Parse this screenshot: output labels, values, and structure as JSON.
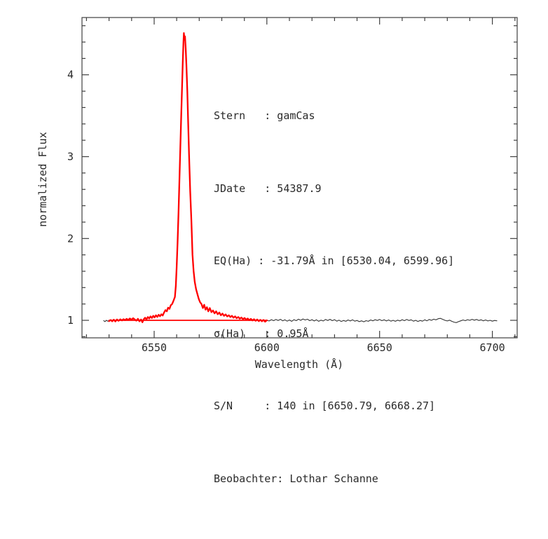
{
  "colors": {
    "background": "#ffffff",
    "frame": "#3f3f3f",
    "text": "#2a2a2a",
    "spectrum_red": "#ff0000",
    "spectrum_black": "#333333"
  },
  "annotation": {
    "lines": [
      "Stern   : gamCas",
      "JDate   : 54387.9",
      "EQ(Ha) : -31.79Å in [6530.04, 6599.96]",
      "σ(Ha)   : 0.95Å",
      "S/N     : 140 in [6650.79, 6668.27]",
      "Beobachter: Lothar Schanne"
    ],
    "star": "gamCas",
    "jdate": "54387.9",
    "eq_ha": "-31.79Å",
    "eq_range": "[6530.04, 6599.96]",
    "sigma_ha": "0.95Å",
    "sn": "140",
    "sn_range": "[6650.79, 6668.27]",
    "observer": "Lothar Schanne"
  },
  "chart_data": {
    "type": "line",
    "title": "",
    "xlabel": "Wavelength (Å)",
    "ylabel": "normalized Flux",
    "xlim": [
      6518,
      6711
    ],
    "ylim": [
      0.786,
      4.7
    ],
    "grid": false,
    "legend": "none",
    "x_major_ticks": [
      6550,
      6600,
      6650,
      6700
    ],
    "x_minor_ticks": [
      6520,
      6530,
      6540,
      6560,
      6570,
      6580,
      6590,
      6610,
      6620,
      6630,
      6640,
      6660,
      6670,
      6680,
      6690,
      6710
    ],
    "y_major_ticks": [
      1,
      2,
      3,
      4
    ],
    "y_minor_ticks": [
      0.8,
      1.2,
      1.4,
      1.6,
      1.8,
      2.2,
      2.4,
      2.6,
      2.8,
      3.2,
      3.4,
      3.6,
      3.8,
      4.2,
      4.4,
      4.6
    ],
    "series": [
      {
        "name": "continuum-fit-line",
        "color": "#ff0000",
        "width": 1.8,
        "points": [
          [
            6530.04,
            1.0
          ],
          [
            6599.96,
            1.0
          ]
        ]
      },
      {
        "name": "spectrum-left-black",
        "color": "#333333",
        "width": 1.1,
        "points": [
          [
            6527.6,
            0.997
          ],
          [
            6528.2,
            0.985
          ],
          [
            6528.8,
            1.0
          ],
          [
            6529.4,
            0.99
          ],
          [
            6530.1,
            0.998
          ]
        ]
      },
      {
        "name": "spectrum-right-black",
        "color": "#333333",
        "width": 1.1,
        "points": [
          [
            6600,
            1.0
          ],
          [
            6601,
            0.992
          ],
          [
            6602,
            1.008
          ],
          [
            6603,
            0.996
          ],
          [
            6604,
            1.01
          ],
          [
            6605,
            0.998
          ],
          [
            6606,
            1.012
          ],
          [
            6607,
            0.994
          ],
          [
            6608,
            1.006
          ],
          [
            6609,
            0.99
          ],
          [
            6610,
            1.004
          ],
          [
            6611,
            0.988
          ],
          [
            6612,
            1.008
          ],
          [
            6613,
            0.996
          ],
          [
            6614,
            1.014
          ],
          [
            6615,
            1.0
          ],
          [
            6616,
            1.016
          ],
          [
            6617,
            1.004
          ],
          [
            6618,
            1.014
          ],
          [
            6619,
            0.996
          ],
          [
            6620,
            1.008
          ],
          [
            6621,
            0.992
          ],
          [
            6622,
            1.006
          ],
          [
            6623,
            0.988
          ],
          [
            6624,
            1.002
          ],
          [
            6625,
            0.992
          ],
          [
            6626,
            1.01
          ],
          [
            6627,
            0.998
          ],
          [
            6628,
            1.012
          ],
          [
            6629,
            0.996
          ],
          [
            6630,
            1.008
          ],
          [
            6631,
            0.99
          ],
          [
            6632,
            1.002
          ],
          [
            6633,
            0.986
          ],
          [
            6634,
            0.998
          ],
          [
            6635,
            0.988
          ],
          [
            6636,
            1.004
          ],
          [
            6637,
            0.992
          ],
          [
            6638,
            1.006
          ],
          [
            6639,
            0.99
          ],
          [
            6640,
            0.998
          ],
          [
            6641,
            0.984
          ],
          [
            6642,
            0.994
          ],
          [
            6643,
            0.982
          ],
          [
            6644,
            0.996
          ],
          [
            6645,
            0.988
          ],
          [
            6646,
            1.004
          ],
          [
            6647,
            0.994
          ],
          [
            6648,
            1.008
          ],
          [
            6649,
            0.998
          ],
          [
            6650,
            1.01
          ],
          [
            6651,
            0.996
          ],
          [
            6652,
            1.006
          ],
          [
            6653,
            0.992
          ],
          [
            6654,
            1.004
          ],
          [
            6655,
            0.99
          ],
          [
            6656,
            1.0
          ],
          [
            6657,
            0.988
          ],
          [
            6658,
            1.002
          ],
          [
            6659,
            0.992
          ],
          [
            6660,
            1.008
          ],
          [
            6661,
            0.996
          ],
          [
            6662,
            1.01
          ],
          [
            6663,
            0.998
          ],
          [
            6664,
            1.006
          ],
          [
            6665,
            0.99
          ],
          [
            6666,
            1.0
          ],
          [
            6667,
            0.986
          ],
          [
            6668,
            0.998
          ],
          [
            6669,
            0.99
          ],
          [
            6670,
            1.006
          ],
          [
            6671,
            0.994
          ],
          [
            6672,
            1.01
          ],
          [
            6673,
            1.0
          ],
          [
            6674,
            1.014
          ],
          [
            6675,
            1.006
          ],
          [
            6676,
            1.02
          ],
          [
            6677,
            1.024
          ],
          [
            6678,
            1.012
          ],
          [
            6679,
            1.0
          ],
          [
            6680,
            0.992
          ],
          [
            6681,
            1.002
          ],
          [
            6682,
            0.988
          ],
          [
            6683,
            0.978
          ],
          [
            6684,
            0.972
          ],
          [
            6685,
            0.984
          ],
          [
            6686,
            0.994
          ],
          [
            6687,
            1.004
          ],
          [
            6688,
            0.996
          ],
          [
            6689,
            1.008
          ],
          [
            6690,
            1.0
          ],
          [
            6691,
            1.012
          ],
          [
            6692,
            1.002
          ],
          [
            6693,
            1.01
          ],
          [
            6694,
            0.998
          ],
          [
            6695,
            1.006
          ],
          [
            6696,
            0.994
          ],
          [
            6697,
            1.004
          ],
          [
            6698,
            0.992
          ],
          [
            6699,
            1.0
          ],
          [
            6700,
            0.99
          ],
          [
            6701,
            0.998
          ],
          [
            6702,
            0.994
          ]
        ]
      },
      {
        "name": "spectrum-halpha-eq-region-red",
        "color": "#ff0000",
        "width": 2.3,
        "points": [
          [
            6530.0,
            0.99
          ],
          [
            6530.7,
            1.004
          ],
          [
            6531.4,
            0.988
          ],
          [
            6532.1,
            1.008
          ],
          [
            6532.8,
            0.986
          ],
          [
            6533.5,
            1.01
          ],
          [
            6534.2,
            0.994
          ],
          [
            6535.0,
            1.012
          ],
          [
            6535.7,
            0.998
          ],
          [
            6536.4,
            1.014
          ],
          [
            6537.1,
            1.002
          ],
          [
            6537.8,
            1.018
          ],
          [
            6538.5,
            1.004
          ],
          [
            6539.2,
            1.022
          ],
          [
            6540.0,
            1.008
          ],
          [
            6540.7,
            1.026
          ],
          [
            6541.4,
            1.01
          ],
          [
            6542.1,
            0.996
          ],
          [
            6542.8,
            1.018
          ],
          [
            6543.5,
            0.988
          ],
          [
            6544.2,
            1.01
          ],
          [
            6544.8,
            0.976
          ],
          [
            6545.4,
            1.014
          ],
          [
            6546.0,
            1.032
          ],
          [
            6546.6,
            1.012
          ],
          [
            6547.2,
            1.04
          ],
          [
            6547.8,
            1.022
          ],
          [
            6548.4,
            1.048
          ],
          [
            6549.0,
            1.028
          ],
          [
            6549.6,
            1.055
          ],
          [
            6550.2,
            1.035
          ],
          [
            6550.8,
            1.062
          ],
          [
            6551.4,
            1.042
          ],
          [
            6552.0,
            1.068
          ],
          [
            6552.6,
            1.05
          ],
          [
            6553.2,
            1.074
          ],
          [
            6553.8,
            1.058
          ],
          [
            6554.4,
            1.095
          ],
          [
            6555.0,
            1.125
          ],
          [
            6555.6,
            1.11
          ],
          [
            6556.2,
            1.155
          ],
          [
            6556.8,
            1.14
          ],
          [
            6557.4,
            1.185
          ],
          [
            6558.0,
            1.2
          ],
          [
            6558.6,
            1.24
          ],
          [
            6559.2,
            1.285
          ],
          [
            6559.6,
            1.42
          ],
          [
            6560.0,
            1.65
          ],
          [
            6560.4,
            1.95
          ],
          [
            6560.8,
            2.3
          ],
          [
            6561.2,
            2.7
          ],
          [
            6561.6,
            3.1
          ],
          [
            6562.0,
            3.5
          ],
          [
            6562.4,
            3.88
          ],
          [
            6562.7,
            4.15
          ],
          [
            6563.0,
            4.4
          ],
          [
            6563.2,
            4.51
          ],
          [
            6563.5,
            4.43
          ],
          [
            6563.7,
            4.47
          ],
          [
            6564.0,
            4.32
          ],
          [
            6564.3,
            4.12
          ],
          [
            6564.7,
            3.8
          ],
          [
            6565.1,
            3.42
          ],
          [
            6565.5,
            3.02
          ],
          [
            6566.0,
            2.58
          ],
          [
            6566.5,
            2.22
          ],
          [
            6567.0,
            1.8
          ],
          [
            6567.5,
            1.6
          ],
          [
            6568.0,
            1.47
          ],
          [
            6568.6,
            1.38
          ],
          [
            6569.2,
            1.32
          ],
          [
            6569.8,
            1.26
          ],
          [
            6570.4,
            1.22
          ],
          [
            6571.0,
            1.2
          ],
          [
            6571.6,
            1.15
          ],
          [
            6572.2,
            1.19
          ],
          [
            6572.8,
            1.13
          ],
          [
            6573.4,
            1.16
          ],
          [
            6574.0,
            1.11
          ],
          [
            6574.7,
            1.15
          ],
          [
            6575.4,
            1.1
          ],
          [
            6576.1,
            1.12
          ],
          [
            6576.8,
            1.085
          ],
          [
            6577.5,
            1.11
          ],
          [
            6578.2,
            1.075
          ],
          [
            6578.9,
            1.095
          ],
          [
            6579.6,
            1.062
          ],
          [
            6580.3,
            1.082
          ],
          [
            6581.0,
            1.055
          ],
          [
            6581.7,
            1.072
          ],
          [
            6582.4,
            1.048
          ],
          [
            6583.1,
            1.062
          ],
          [
            6583.8,
            1.04
          ],
          [
            6584.5,
            1.055
          ],
          [
            6585.2,
            1.032
          ],
          [
            6585.9,
            1.048
          ],
          [
            6586.6,
            1.026
          ],
          [
            6587.3,
            1.04
          ],
          [
            6588.0,
            1.02
          ],
          [
            6588.7,
            1.034
          ],
          [
            6589.4,
            1.014
          ],
          [
            6590.1,
            1.028
          ],
          [
            6590.8,
            1.008
          ],
          [
            6591.5,
            1.022
          ],
          [
            6592.2,
            1.002
          ],
          [
            6592.9,
            1.018
          ],
          [
            6593.6,
            0.998
          ],
          [
            6594.3,
            1.014
          ],
          [
            6595.0,
            0.994
          ],
          [
            6595.7,
            1.01
          ],
          [
            6596.4,
            0.99
          ],
          [
            6597.1,
            1.006
          ],
          [
            6597.8,
            0.988
          ],
          [
            6598.5,
            1.004
          ],
          [
            6599.2,
            0.984
          ],
          [
            6600.0,
            1.0
          ]
        ]
      }
    ]
  }
}
